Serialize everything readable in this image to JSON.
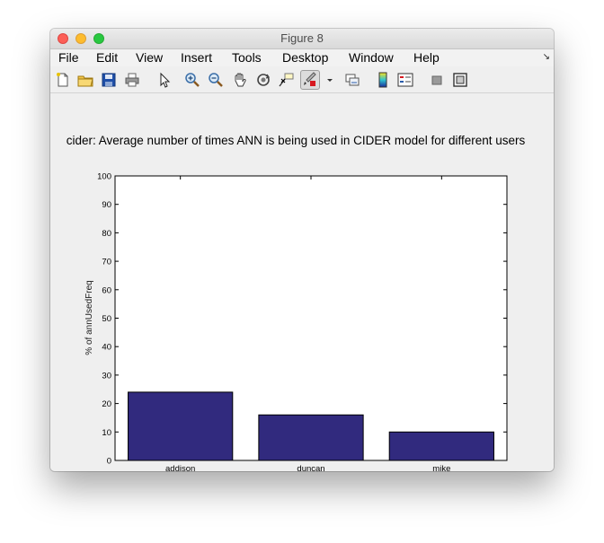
{
  "window": {
    "title": "Figure 8"
  },
  "menu": {
    "items": [
      "File",
      "Edit",
      "View",
      "Insert",
      "Tools",
      "Desktop",
      "Window",
      "Help"
    ]
  },
  "toolbar": {
    "icons": [
      "new-figure-icon",
      "open-file-icon",
      "save-icon",
      "print-icon",
      "pointer-icon",
      "zoom-in-icon",
      "zoom-out-icon",
      "pan-hand-icon",
      "rotate-3d-icon",
      "data-cursor-icon",
      "brush-icon",
      "brush-dropdown-icon",
      "link-plot-icon",
      "colorbar-icon",
      "legend-icon",
      "hide-plot-tools-icon",
      "show-plot-tools-icon"
    ]
  },
  "colors": {
    "bar_fill": "#312a7e",
    "figure_background": "#efefef",
    "axes_background": "#ffffff"
  },
  "chart_data": {
    "type": "bar",
    "title": "cider: Average number of times ANN is being used in CIDER model for different users",
    "xlabel": "",
    "ylabel": "% of annUsedFreq",
    "categories": [
      "addison",
      "duncan",
      "mike"
    ],
    "values": [
      24,
      16,
      10
    ],
    "ylim": [
      0,
      100
    ],
    "yticks": [
      0,
      10,
      20,
      30,
      40,
      50,
      60,
      70,
      80,
      90,
      100
    ],
    "grid": false
  }
}
